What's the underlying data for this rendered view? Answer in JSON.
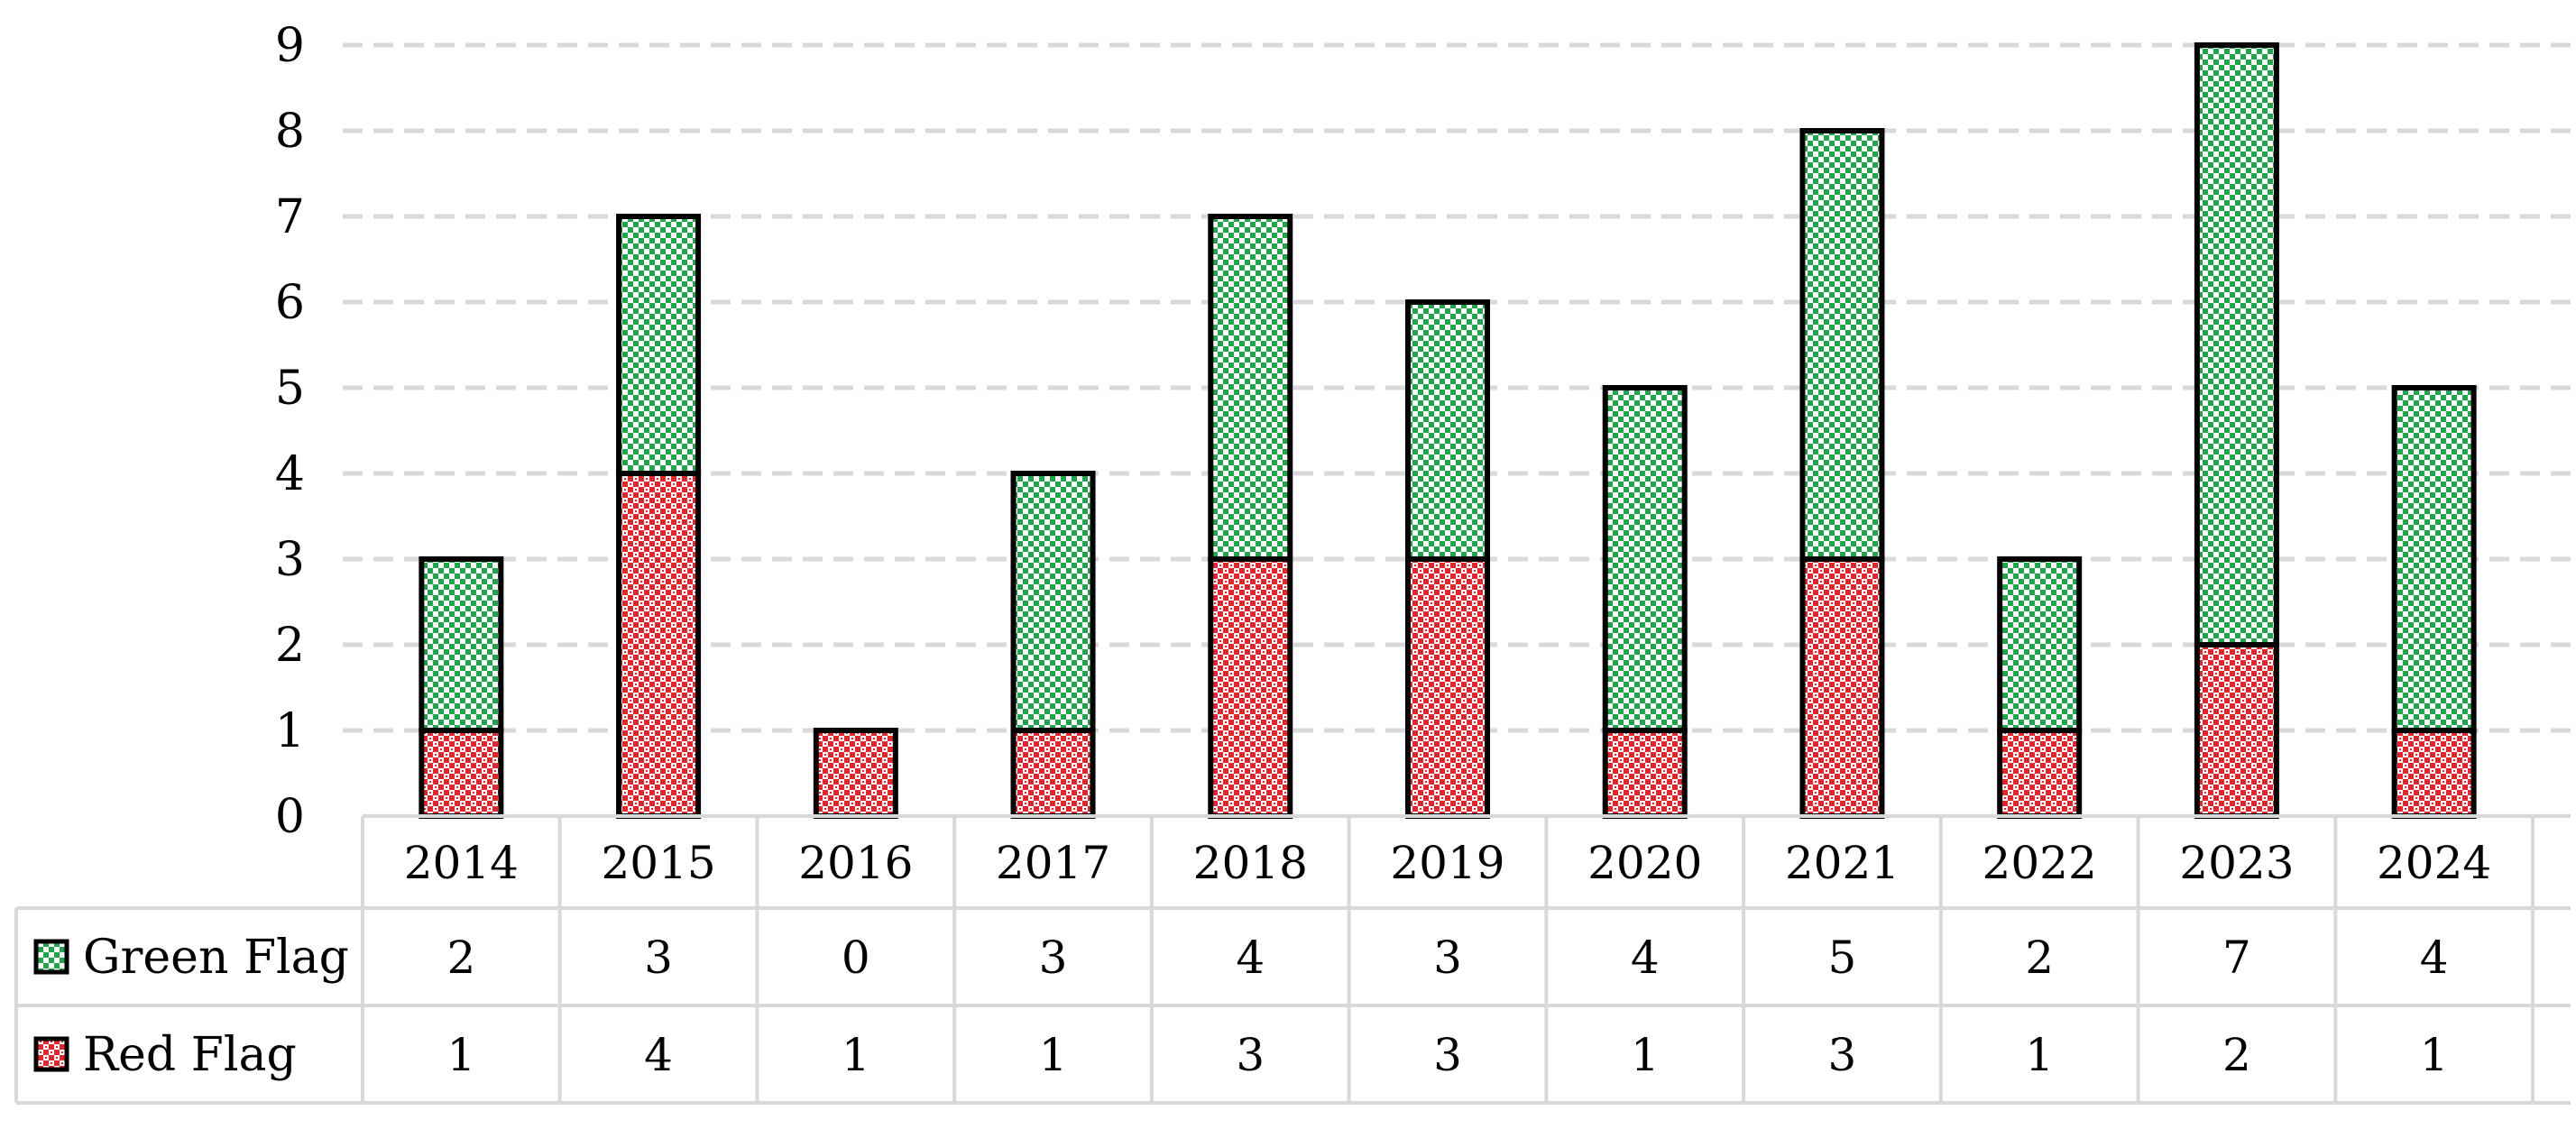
{
  "chart_data": {
    "type": "bar",
    "stacked": true,
    "categories": [
      "2014",
      "2015",
      "2016",
      "2017",
      "2018",
      "2019",
      "2020",
      "2021",
      "2022",
      "2023",
      "2024"
    ],
    "series": [
      {
        "name": "Red Flag",
        "values": [
          1,
          4,
          1,
          1,
          3,
          3,
          1,
          3,
          1,
          2,
          1
        ],
        "color": "#e8232a",
        "pattern": "checker"
      },
      {
        "name": "Green Flag",
        "values": [
          2,
          3,
          0,
          3,
          4,
          3,
          4,
          5,
          2,
          7,
          4
        ],
        "color": "#1fa54a",
        "pattern": "checker"
      }
    ],
    "yticks": [
      "0",
      "1",
      "2",
      "3",
      "4",
      "5",
      "6",
      "7",
      "8",
      "9"
    ],
    "ylim": [
      0,
      9
    ],
    "grid": true,
    "legend_placement": "data-table",
    "data_table": {
      "rows": [
        {
          "label": "Green Flag",
          "values": [
            "2",
            "3",
            "0",
            "3",
            "4",
            "3",
            "4",
            "5",
            "2",
            "7",
            "4"
          ]
        },
        {
          "label": "Red Flag",
          "values": [
            "1",
            "4",
            "1",
            "1",
            "3",
            "3",
            "1",
            "3",
            "1",
            "2",
            "1"
          ]
        }
      ]
    }
  }
}
